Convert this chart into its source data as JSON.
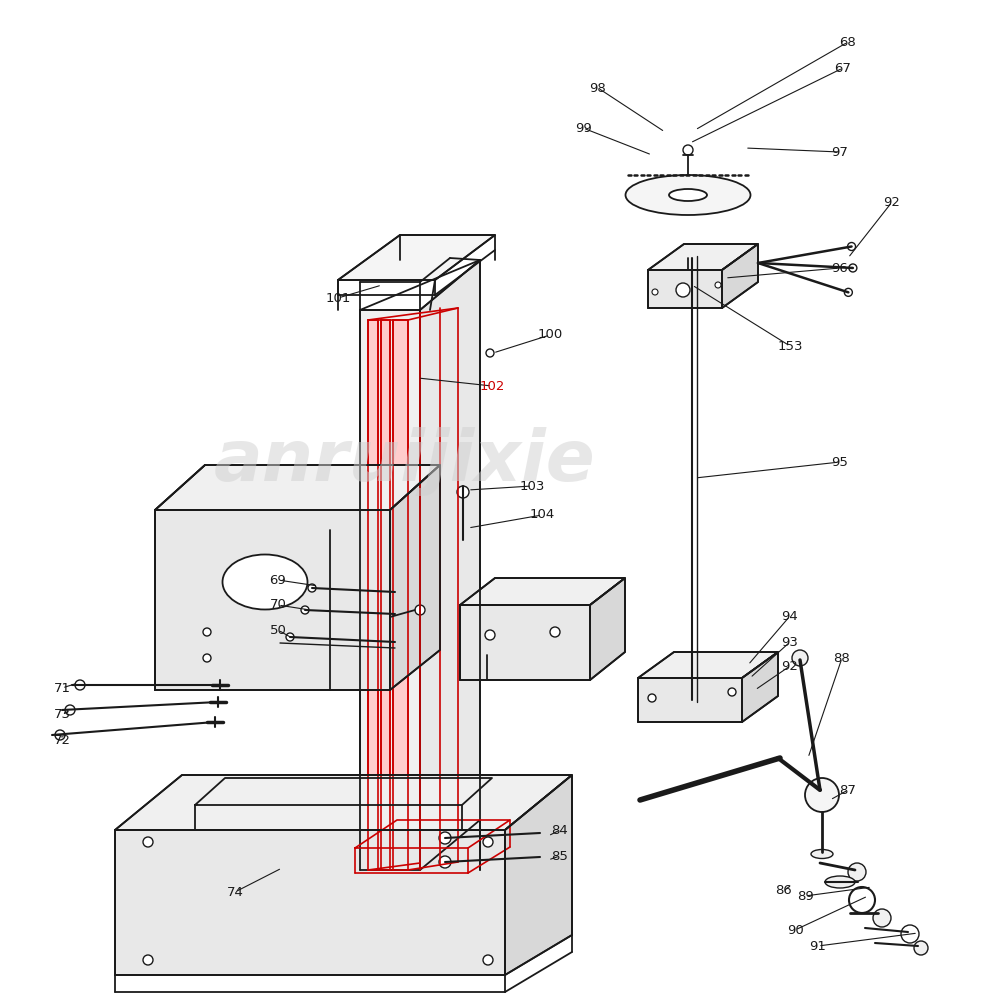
{
  "bg_color": "#ffffff",
  "line_color": "#1a1a1a",
  "red_color": "#cc0000",
  "watermark_color": "#d0d0d0",
  "watermark_text": "anruijixie",
  "figsize": [
    10,
    10
  ],
  "dpi": 100
}
